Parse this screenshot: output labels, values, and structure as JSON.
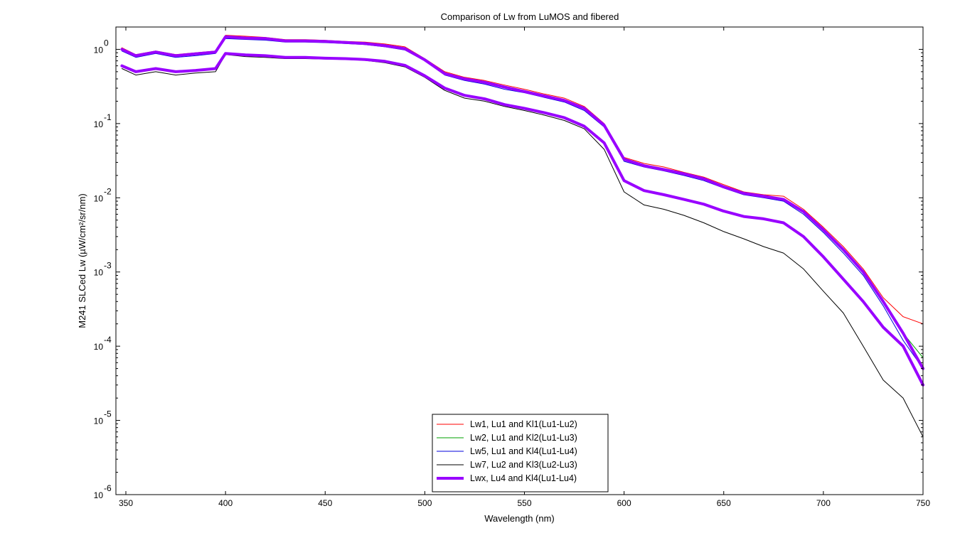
{
  "chart_data": {
    "type": "line",
    "title": "Comparison of Lw from LuMOS and fibered",
    "xlabel": "Wavelength (nm)",
    "ylabel": "M241 SLCed Lw (µW/cm²/sr/nm)",
    "xlim": [
      345,
      750
    ],
    "ylim": [
      1e-06,
      2
    ],
    "yscale": "log",
    "grid": false,
    "legend_position": "bottom-center",
    "x_ticks": [
      350,
      400,
      450,
      500,
      550,
      600,
      650,
      700,
      750
    ],
    "y_ticks": [
      {
        "value": 1,
        "base": "10",
        "exp": "0"
      },
      {
        "value": 0.1,
        "base": "10",
        "exp": "-1"
      },
      {
        "value": 0.01,
        "base": "10",
        "exp": "-2"
      },
      {
        "value": 0.001,
        "base": "10",
        "exp": "-3"
      },
      {
        "value": 0.0001,
        "base": "10",
        "exp": "-4"
      },
      {
        "value": 1e-05,
        "base": "10",
        "exp": "-5"
      },
      {
        "value": 1e-06,
        "base": "10",
        "exp": "-6"
      }
    ],
    "x": [
      348,
      355,
      365,
      375,
      385,
      395,
      400,
      410,
      420,
      430,
      440,
      450,
      460,
      470,
      480,
      490,
      500,
      510,
      520,
      530,
      540,
      550,
      560,
      570,
      580,
      590,
      600,
      610,
      620,
      630,
      640,
      650,
      660,
      670,
      680,
      690,
      700,
      710,
      720,
      730,
      740,
      750
    ],
    "series": [
      {
        "name": "Lw1, Lu1 and Kl1(Lu1-Lu2)",
        "color": "#ff0000",
        "width": 1,
        "values": [
          1.05,
          0.85,
          0.95,
          0.85,
          0.9,
          0.95,
          1.55,
          1.5,
          1.45,
          1.35,
          1.35,
          1.32,
          1.28,
          1.25,
          1.18,
          1.08,
          0.75,
          0.5,
          0.42,
          0.38,
          0.33,
          0.29,
          0.25,
          0.22,
          0.17,
          0.1,
          0.035,
          0.029,
          0.026,
          0.022,
          0.019,
          0.015,
          0.012,
          0.011,
          0.0105,
          0.007,
          0.004,
          0.0022,
          0.0011,
          0.00045,
          0.00025,
          0.0002
        ]
      },
      {
        "name": "Lw2, Lu1 and Kl2(Lu1-Lu3)",
        "color": "#00a000",
        "width": 1,
        "values": [
          1.0,
          0.8,
          0.9,
          0.8,
          0.85,
          0.9,
          1.45,
          1.4,
          1.38,
          1.3,
          1.3,
          1.28,
          1.24,
          1.2,
          1.12,
          1.02,
          0.72,
          0.47,
          0.4,
          0.36,
          0.31,
          0.27,
          0.235,
          0.205,
          0.16,
          0.095,
          0.033,
          0.027,
          0.024,
          0.021,
          0.018,
          0.014,
          0.0115,
          0.0105,
          0.0095,
          0.0065,
          0.0037,
          0.002,
          0.001,
          0.0004,
          0.00015,
          7e-05
        ]
      },
      {
        "name": "Lw5, Lu1 and Kl4(Lu1-Lu4)",
        "color": "#0000dd",
        "width": 1,
        "values": [
          0.95,
          0.78,
          0.88,
          0.78,
          0.82,
          0.88,
          1.4,
          1.36,
          1.33,
          1.25,
          1.25,
          1.23,
          1.2,
          1.16,
          1.08,
          0.98,
          0.7,
          0.45,
          0.38,
          0.34,
          0.29,
          0.26,
          0.225,
          0.195,
          0.15,
          0.09,
          0.031,
          0.026,
          0.023,
          0.02,
          0.017,
          0.0135,
          0.011,
          0.01,
          0.009,
          0.006,
          0.0034,
          0.0018,
          0.0009,
          0.00035,
          0.00012,
          5e-05
        ]
      },
      {
        "name": "Lw7, Lu2 and Kl3(Lu2-Lu3)",
        "color": "#000000",
        "width": 1,
        "values": [
          0.55,
          0.45,
          0.5,
          0.45,
          0.48,
          0.5,
          0.85,
          0.8,
          0.78,
          0.75,
          0.75,
          0.74,
          0.73,
          0.71,
          0.66,
          0.58,
          0.42,
          0.28,
          0.22,
          0.2,
          0.17,
          0.15,
          0.13,
          0.11,
          0.085,
          0.045,
          0.012,
          0.008,
          0.007,
          0.0058,
          0.0046,
          0.0035,
          0.0028,
          0.0022,
          0.0018,
          0.0011,
          0.00055,
          0.00028,
          0.0001,
          3.5e-05,
          2e-05,
          6e-06
        ]
      },
      {
        "name": "Lwx, Lu4 and Kl4(Lu1-Lu4)",
        "color": "#9900ff",
        "width": 4,
        "values": [
          1.0,
          0.82,
          0.92,
          0.82,
          0.87,
          0.92,
          1.48,
          1.42,
          1.4,
          1.3,
          1.3,
          1.28,
          1.24,
          1.2,
          1.12,
          1.02,
          0.72,
          0.47,
          0.4,
          0.36,
          0.31,
          0.27,
          0.235,
          0.205,
          0.16,
          0.095,
          0.033,
          0.027,
          0.024,
          0.021,
          0.018,
          0.014,
          0.0115,
          0.0105,
          0.0095,
          0.0065,
          0.0037,
          0.002,
          0.001,
          0.0004,
          0.00015,
          5e-05
        ]
      },
      {
        "name": "",
        "color": "#9900ff",
        "width": 4,
        "values": [
          0.6,
          0.5,
          0.55,
          0.5,
          0.52,
          0.55,
          0.88,
          0.84,
          0.82,
          0.78,
          0.78,
          0.76,
          0.75,
          0.73,
          0.69,
          0.61,
          0.44,
          0.3,
          0.24,
          0.215,
          0.18,
          0.16,
          0.14,
          0.12,
          0.092,
          0.055,
          0.017,
          0.0125,
          0.011,
          0.0095,
          0.0082,
          0.0066,
          0.0056,
          0.0052,
          0.0046,
          0.003,
          0.0016,
          0.0008,
          0.0004,
          0.00018,
          0.0001,
          3e-05
        ]
      }
    ]
  }
}
